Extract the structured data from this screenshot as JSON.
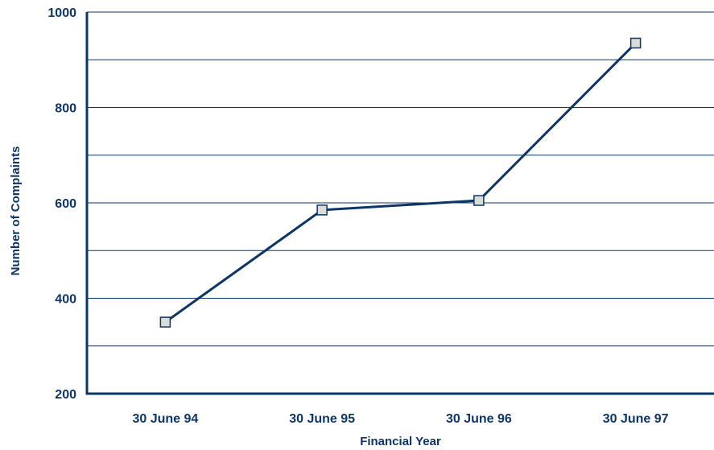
{
  "chart_data": {
    "type": "line",
    "categories": [
      "30 June 94",
      "30 June 95",
      "30 June 96",
      "30 June 97"
    ],
    "series": [
      {
        "values": [
          350,
          585,
          605,
          935
        ]
      }
    ],
    "xlabel": "Financial Year",
    "ylabel": "Number of Complaints",
    "ylim": [
      200,
      1000
    ],
    "yticks_labeled": [
      200,
      400,
      600,
      800,
      1000
    ],
    "yticks_grid": [
      300,
      400,
      500,
      600,
      700,
      800,
      900,
      1000
    ],
    "grid": true,
    "colors": {
      "line": "#0d3566",
      "marker_fill": "#d9ddd8",
      "text": "#0d3566"
    }
  }
}
